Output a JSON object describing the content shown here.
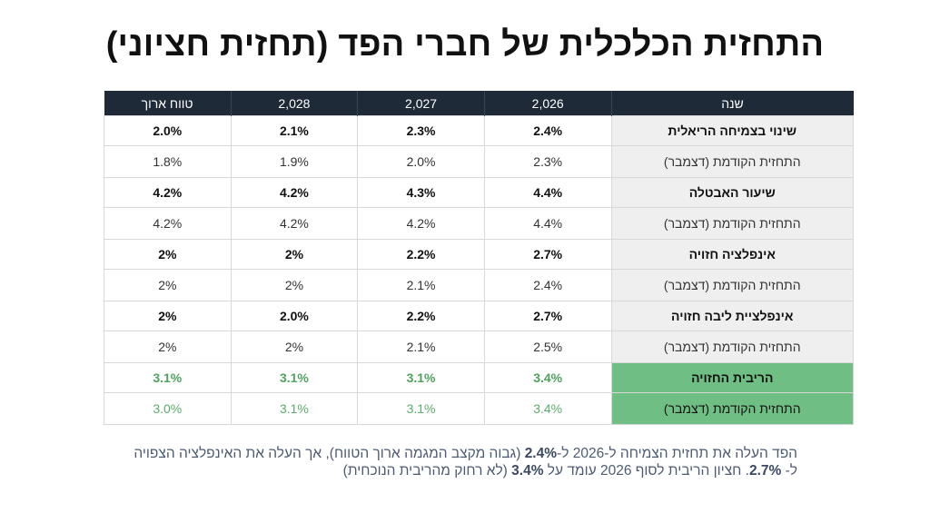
{
  "title": "התחזית הכלכלית של חברי הפד (תחזית חציוני)",
  "table": {
    "headers": [
      "שנה",
      "2,026",
      "2,027",
      "2,028",
      "טווח ארוך"
    ],
    "rows": [
      {
        "label": "שינוי בצמיחה הריאלית",
        "values": [
          "2.4%",
          "2.3%",
          "2.1%",
          "2.0%"
        ]
      },
      {
        "label": "התחזית הקודמת (דצמבר)",
        "values": [
          "2.3%",
          "2.0%",
          "1.9%",
          "1.8%"
        ]
      },
      {
        "label": "שיעור האבטלה",
        "values": [
          "4.4%",
          "4.3%",
          "4.2%",
          "4.2%"
        ]
      },
      {
        "label": "התחזית הקודמת (דצמבר)",
        "values": [
          "4.4%",
          "4.2%",
          "4.2%",
          "4.2%"
        ]
      },
      {
        "label": "אינפלציה חזויה",
        "values": [
          "2.7%",
          "2.2%",
          "2%",
          "2%"
        ]
      },
      {
        "label": "התחזית הקודמת (דצמבר)",
        "values": [
          "2.4%",
          "2.1%",
          "2%",
          "2%"
        ]
      },
      {
        "label": "אינפלציית ליבה חזויה",
        "values": [
          "2.7%",
          "2.2%",
          "2.0%",
          "2%"
        ]
      },
      {
        "label": "התחזית הקודמת (דצמבר)",
        "values": [
          "2.5%",
          "2.1%",
          "2%",
          "2%"
        ]
      },
      {
        "label": "הריבית החזויה",
        "values": [
          "3.4%",
          "3.1%",
          "3.1%",
          "3.1%"
        ]
      },
      {
        "label": "התחזית הקודמת (דצמבר)",
        "values": [
          "3.4%",
          "3.1%",
          "3.1%",
          "3.0%"
        ]
      }
    ]
  },
  "footnote": {
    "p1": "הפד העלה את תחזית הצמיחה  ל-2026 ל-",
    "b1": "2.4%",
    "p2": " (גבוה מקצב המגמה ארוך הטווח), אך העלה את האינפלציה הצפויה ל- ",
    "b2": "2.7%",
    "p3": ".  חציון הריבית לסוף 2026 עומד על  ",
    "b3": "3.4%",
    "p4": "  (לא רחוק מהריבית הנוכחית)"
  },
  "colors": {
    "header_bg": "#1f2a38",
    "label_bg": "#efefef",
    "rate_label_bg": "#6fbf84",
    "rate_value": "#5aad6a",
    "footnote_text": "#4d5b72"
  }
}
